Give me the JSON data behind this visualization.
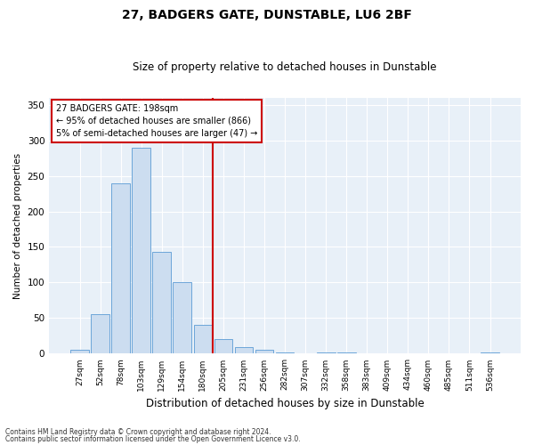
{
  "title": "27, BADGERS GATE, DUNSTABLE, LU6 2BF",
  "subtitle": "Size of property relative to detached houses in Dunstable",
  "xlabel": "Distribution of detached houses by size in Dunstable",
  "ylabel": "Number of detached properties",
  "footnote1": "Contains HM Land Registry data © Crown copyright and database right 2024.",
  "footnote2": "Contains public sector information licensed under the Open Government Licence v3.0.",
  "annotation_line1": "27 BADGERS GATE: 198sqm",
  "annotation_line2": "← 95% of detached houses are smaller (866)",
  "annotation_line3": "5% of semi-detached houses are larger (47) →",
  "bar_color": "#ccddf0",
  "bar_edge_color": "#5b9bd5",
  "vline_color": "#cc0000",
  "annotation_box_color": "#cc0000",
  "background_color": "#e8f0f8",
  "grid_color": "#ffffff",
  "categories": [
    "27sqm",
    "52sqm",
    "78sqm",
    "103sqm",
    "129sqm",
    "154sqm",
    "180sqm",
    "205sqm",
    "231sqm",
    "256sqm",
    "282sqm",
    "307sqm",
    "332sqm",
    "358sqm",
    "383sqm",
    "409sqm",
    "434sqm",
    "460sqm",
    "485sqm",
    "511sqm",
    "536sqm"
  ],
  "bar_heights": [
    5,
    55,
    240,
    290,
    143,
    100,
    40,
    20,
    9,
    5,
    2,
    0,
    2,
    2,
    0,
    0,
    0,
    0,
    0,
    0,
    2
  ],
  "vline_pos": 7.0,
  "ylim": [
    0,
    360
  ],
  "yticks": [
    0,
    50,
    100,
    150,
    200,
    250,
    300,
    350
  ]
}
